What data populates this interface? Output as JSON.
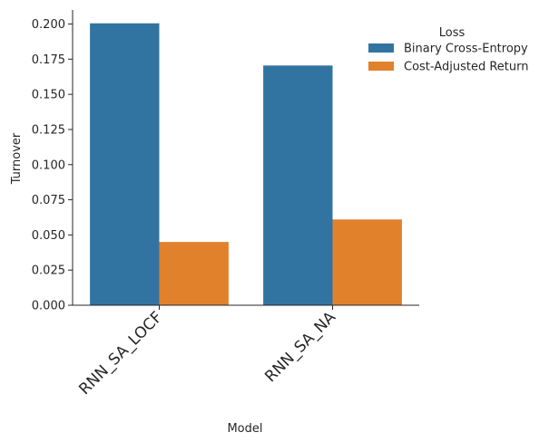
{
  "chart_data": {
    "type": "bar",
    "categories": [
      "RNN_SA_LOCF",
      "RNN_SA_NA"
    ],
    "series": [
      {
        "name": "Binary Cross-Entropy",
        "values": [
          0.2005,
          0.1705
        ],
        "color": "#3274a1"
      },
      {
        "name": "Cost-Adjusted Return",
        "values": [
          0.045,
          0.061
        ],
        "color": "#e1812c"
      }
    ],
    "xlabel": "Model",
    "ylabel": "Turnover",
    "ylim": [
      0,
      0.21
    ],
    "yticks": [
      0.0,
      0.025,
      0.05,
      0.075,
      0.1,
      0.125,
      0.15,
      0.175,
      0.2
    ],
    "ytick_labels": [
      "0.000",
      "0.025",
      "0.050",
      "0.075",
      "0.100",
      "0.125",
      "0.150",
      "0.175",
      "0.200"
    ],
    "legend": {
      "title": "Loss",
      "placement": "top-right"
    },
    "grid": false
  }
}
